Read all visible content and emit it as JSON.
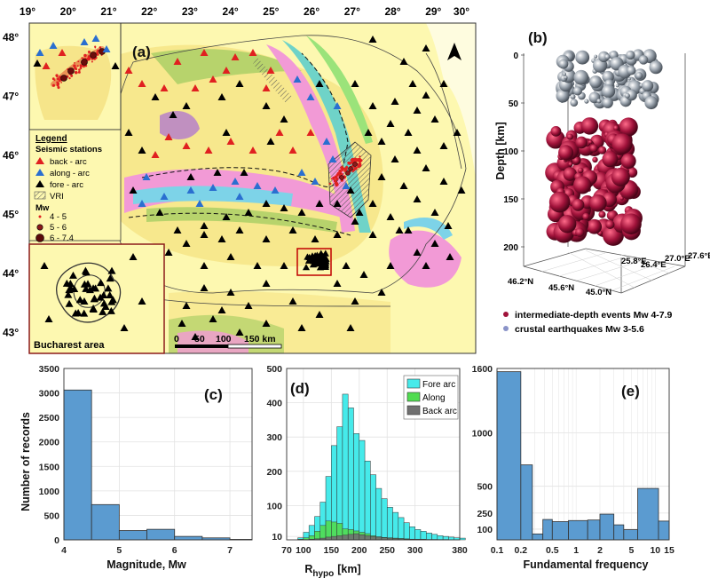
{
  "figure": {
    "panel_labels": [
      "(a)",
      "(b)",
      "(c)",
      "(d)",
      "(e)"
    ],
    "colors": {
      "bar_blue": "#5b9bd0",
      "fore_arc": "#46eaea",
      "along": "#50dc50",
      "back_arc": "#707070",
      "intermediate": "#a0123a",
      "crustal": "#9aa3ad"
    }
  },
  "map": {
    "lon_ticks": [
      "19°",
      "20°",
      "21°",
      "22°",
      "23°",
      "24°",
      "25°",
      "26°",
      "27°",
      "28°",
      "29°",
      "30°"
    ],
    "lat_ticks": [
      "48°",
      "47°",
      "46°",
      "45°",
      "44°",
      "43°"
    ],
    "legend": {
      "title": "Legend",
      "section_stations": "Seismic stations",
      "stations": [
        {
          "label": "back - arc",
          "color": "#e02020"
        },
        {
          "label": "along - arc",
          "color": "#2a6fd0"
        },
        {
          "label": "fore - arc",
          "color": "#000000"
        }
      ],
      "vri_label": "VRI",
      "mw_title": "Mw",
      "mw_classes": [
        "4 - 5",
        "5 - 6",
        "6 - 7.4"
      ]
    },
    "inset_label": "Bucharest area",
    "scalebar": [
      "0",
      "50",
      "100",
      "150 km"
    ],
    "north_icon": "north-arrow-icon"
  },
  "depth3d": {
    "depth_label": "Depth [km]",
    "depth_ticks": [
      "0",
      "50",
      "100",
      "150",
      "200"
    ],
    "lon_ticks": [
      "25.8°E",
      "26.4°E",
      "27.0°E",
      "27.6°E"
    ],
    "lat_ticks": [
      "46.2°N",
      "45.6°N",
      "45.0°N"
    ],
    "legend": [
      {
        "label": "intermediate-depth events Mw 4-7.9",
        "color": "#a0123a"
      },
      {
        "label": "crustal earthquakes Mw 3-5.6",
        "color": "#8a93c8"
      }
    ]
  },
  "chart_data": [
    {
      "panel": "(c)",
      "type": "bar",
      "xlabel": "Magnitude, Mw",
      "ylabel": "Number of records",
      "xlim": [
        4,
        7.4
      ],
      "ylim": [
        0,
        3500
      ],
      "x_ticks": [
        4,
        5,
        6,
        7
      ],
      "y_ticks": [
        0,
        500,
        1000,
        1500,
        2000,
        2500,
        3000,
        3500
      ],
      "bin_edges": [
        4.0,
        4.5,
        5.0,
        5.5,
        6.0,
        6.5,
        7.0,
        7.4
      ],
      "values": [
        3060,
        720,
        190,
        215,
        70,
        40,
        10
      ]
    },
    {
      "panel": "(d)",
      "type": "bar",
      "stacked": true,
      "xlabel_main": "R",
      "xlabel_sub": "hypo",
      "xlabel_unit": "[km]",
      "xlim": [
        70,
        380
      ],
      "ylim": [
        0,
        500
      ],
      "x_ticks": [
        70,
        100,
        150,
        200,
        250,
        300,
        380
      ],
      "y_ticks": [
        10,
        100,
        200,
        300,
        400,
        500
      ],
      "x_bin_start": 90,
      "x_bin_width": 10,
      "legend_position": "top-right",
      "series": [
        {
          "name": "Fore arc",
          "color": "#46eaea",
          "values": [
            6,
            22,
            42,
            68,
            110,
            185,
            275,
            330,
            425,
            385,
            310,
            290,
            230,
            190,
            150,
            120,
            95,
            80,
            65,
            50,
            38,
            30,
            25,
            20,
            16,
            12,
            10,
            8,
            6,
            5
          ]
        },
        {
          "name": "Along",
          "color": "#50dc50",
          "values": [
            2,
            6,
            12,
            25,
            42,
            55,
            52,
            48,
            32,
            30,
            26,
            22,
            18,
            12,
            9,
            7,
            6,
            5,
            4,
            3,
            2,
            2,
            2,
            1,
            1,
            1,
            1,
            0,
            0,
            0
          ]
        },
        {
          "name": "Back arc",
          "color": "#707070",
          "values": [
            0,
            1,
            2,
            3,
            5,
            8,
            10,
            12,
            14,
            16,
            18,
            15,
            12,
            10,
            8,
            6,
            5,
            4,
            3,
            2,
            2,
            1,
            1,
            1,
            1,
            0,
            0,
            0,
            0,
            0
          ]
        }
      ]
    },
    {
      "panel": "(e)",
      "type": "bar",
      "xlabel": "Fundamental frequency",
      "xscale": "log",
      "xlim": [
        0.1,
        15
      ],
      "ylim": [
        0,
        1600
      ],
      "x_ticks": [
        0.1,
        0.2,
        0.5,
        1,
        2,
        5,
        10,
        15
      ],
      "x_tick_labels": [
        "0.1",
        "0.2",
        "0.5",
        "1",
        "2",
        "5",
        "10",
        "15"
      ],
      "y_ticks": [
        100,
        250,
        500,
        1000,
        1600
      ],
      "bin_edges": [
        0.1,
        0.2,
        0.28,
        0.38,
        0.5,
        0.8,
        1.4,
        2.0,
        3.0,
        4.0,
        6.0,
        11.0,
        15.0
      ],
      "values": [
        1570,
        700,
        55,
        190,
        170,
        180,
        185,
        240,
        140,
        95,
        480,
        175
      ],
      "color": "#5b9bd0"
    }
  ]
}
